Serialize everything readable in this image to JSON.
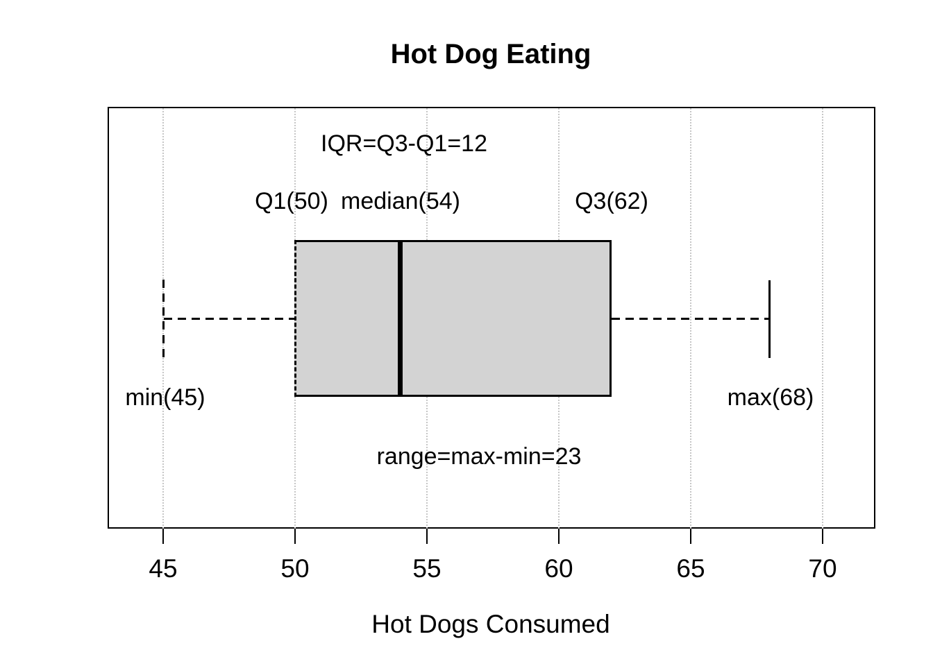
{
  "title": "Hot Dog Eating",
  "x_axis": {
    "label": "Hot Dogs Consumed",
    "ticks": [
      "45",
      "50",
      "55",
      "60",
      "65",
      "70"
    ]
  },
  "annotations": {
    "iqr": "IQR=Q3-Q1=12",
    "q1": "Q1(50)",
    "median": "median(54)",
    "q3": "Q3(62)",
    "min": "min(45)",
    "max": "max(68)",
    "range": "range=max-min=23"
  },
  "colors": {
    "background": "#ffffff",
    "box_fill": "#d3d3d3",
    "line": "#000000",
    "gridline": "#c6c6c6"
  },
  "chart_data": {
    "type": "boxplot",
    "orientation": "horizontal",
    "title": "Hot Dog Eating",
    "xlabel": "Hot Dogs Consumed",
    "ylabel": "",
    "series_name": "Hot Dogs Consumed",
    "stats": {
      "min": 45,
      "q1": 50,
      "median": 54,
      "q3": 62,
      "max": 68,
      "iqr": 12,
      "range": 23
    },
    "x_ticks": [
      45,
      50,
      55,
      60,
      65,
      70
    ],
    "xlim": [
      42.9,
      72.1
    ],
    "grid": "vertical dotted gridlines at each x tick",
    "whisker_style": "dashed",
    "box_fill": "#d3d3d3",
    "annotations": [
      {
        "text": "IQR=Q3-Q1=12",
        "x": 54.1,
        "position": "above box"
      },
      {
        "text": "Q1(50)",
        "x": 50,
        "position": "above box"
      },
      {
        "text": "median(54)",
        "x": 54,
        "position": "above box"
      },
      {
        "text": "Q3(62)",
        "x": 62,
        "position": "above box"
      },
      {
        "text": "min(45)",
        "x": 45,
        "position": "below whisker"
      },
      {
        "text": "max(68)",
        "x": 68,
        "position": "below whisker"
      },
      {
        "text": "range=max-min=23",
        "x": 57,
        "position": "below box"
      }
    ]
  }
}
